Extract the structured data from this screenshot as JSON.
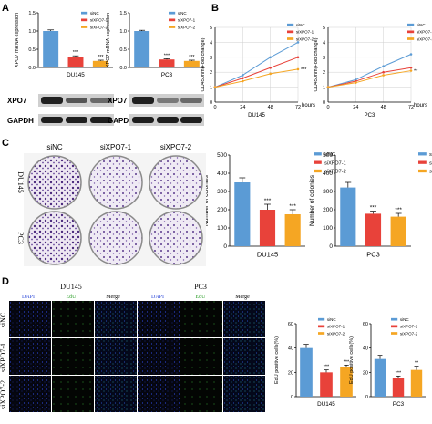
{
  "panels": {
    "A": "A",
    "B": "B",
    "C": "C",
    "D": "D"
  },
  "legend3": [
    "siNC",
    "siXPO7-1",
    "siXPO7-2"
  ],
  "colors": {
    "siNC": "#5b9bd5",
    "siXPO7-1": "#e8423a",
    "siXPO7-2": "#f5a623"
  },
  "cells": {
    "du145": "DU145",
    "pc3": "PC3"
  },
  "blot_labels": {
    "xpo7": "XPO7",
    "gapdh": "GAPDH"
  },
  "stars": {
    "three": "***",
    "two": "**"
  },
  "panelB": {
    "ylabel": "OD450nm(Fold change)",
    "xunit": "hours",
    "pc3_end_mark": "**"
  },
  "panelC": {
    "row_labels": [
      "DU145",
      "PC3"
    ]
  },
  "panelD": {
    "cols": [
      "DAPI",
      "EdU",
      "Merge"
    ],
    "rows": [
      "siNC",
      "siXPO7-1",
      "siXPO7-2"
    ]
  },
  "chart_data": [
    {
      "type": "bar",
      "id": "A-DU145",
      "categories": [
        "siNC",
        "siXPO7-1",
        "siXPO7-2"
      ],
      "values": [
        1.0,
        0.3,
        0.18
      ],
      "errors": [
        0.03,
        0.02,
        0.02
      ],
      "ylim": [
        0,
        1.5
      ],
      "yticks": [
        "0.0",
        "0.5",
        "1.0",
        "1.5"
      ],
      "ylabel": "XPO7 mRNA expression",
      "xlabel": "DU145",
      "stars": [
        "",
        "***",
        "***"
      ]
    },
    {
      "type": "bar",
      "id": "A-PC3",
      "categories": [
        "siNC",
        "siXPO7-1",
        "siXPO7-2"
      ],
      "values": [
        1.0,
        0.22,
        0.18
      ],
      "errors": [
        0.02,
        0.02,
        0.02
      ],
      "ylim": [
        0,
        1.5
      ],
      "yticks": [
        "0.0",
        "0.5",
        "1.0",
        "1.5"
      ],
      "ylabel": "XPO7 mRNA expression",
      "xlabel": "PC3",
      "stars": [
        "",
        "***",
        "***"
      ]
    },
    {
      "type": "line",
      "id": "B-DU145",
      "x": [
        0,
        24,
        48,
        72
      ],
      "xticks": [
        "0",
        "24",
        "48",
        "72"
      ],
      "ylim": [
        0,
        5
      ],
      "yticks": [
        "0",
        "1",
        "2",
        "3",
        "4",
        "5"
      ],
      "xlabel": "DU145",
      "series": [
        {
          "name": "siNC",
          "values": [
            1.0,
            1.8,
            3.0,
            4.0
          ]
        },
        {
          "name": "siXPO7-1",
          "values": [
            1.0,
            1.6,
            2.3,
            3.0
          ]
        },
        {
          "name": "siXPO7-2",
          "values": [
            1.0,
            1.4,
            1.9,
            2.2
          ]
        }
      ]
    },
    {
      "type": "line",
      "id": "B-PC3",
      "x": [
        0,
        24,
        48,
        72
      ],
      "xticks": [
        "0",
        "24",
        "48",
        "72"
      ],
      "ylim": [
        0,
        5
      ],
      "yticks": [
        "0",
        "1",
        "2",
        "3",
        "4",
        "5"
      ],
      "xlabel": "PC3",
      "series": [
        {
          "name": "siNC",
          "values": [
            1.0,
            1.5,
            2.4,
            3.2
          ]
        },
        {
          "name": "siXPO7-1",
          "values": [
            1.0,
            1.4,
            2.0,
            2.3
          ]
        },
        {
          "name": "siXPO7-2",
          "values": [
            1.0,
            1.3,
            1.8,
            2.1
          ]
        }
      ]
    },
    {
      "type": "bar",
      "id": "C-DU145",
      "categories": [
        "siNC",
        "siXPO7-1",
        "siXPO7-2"
      ],
      "values": [
        350,
        200,
        175
      ],
      "errors": [
        25,
        30,
        25
      ],
      "ylim": [
        0,
        500
      ],
      "yticks": [
        "0",
        "100",
        "200",
        "300",
        "400",
        "500"
      ],
      "ylabel": "Number of colonies",
      "xlabel": "DU145",
      "stars": [
        "",
        "***",
        "***"
      ]
    },
    {
      "type": "bar",
      "id": "C-PC3",
      "categories": [
        "siNC",
        "siXPO7-1",
        "siXPO7-2"
      ],
      "values": [
        322,
        178,
        162
      ],
      "errors": [
        28,
        14,
        18
      ],
      "ylim": [
        0,
        500
      ],
      "yticks": [
        "0",
        "100",
        "200",
        "300",
        "400",
        "500"
      ],
      "ylabel": "Number of colonies",
      "xlabel": "PC3",
      "stars": [
        "",
        "***",
        "***"
      ]
    },
    {
      "type": "bar",
      "id": "D-DU145",
      "categories": [
        "siNC",
        "siXPO7-1",
        "siXPO7-2"
      ],
      "values": [
        40,
        20,
        24
      ],
      "errors": [
        3,
        2,
        2
      ],
      "ylim": [
        0,
        60
      ],
      "yticks": [
        "0",
        "20",
        "40",
        "60"
      ],
      "ylabel": "EdU positive cells(%)",
      "xlabel": "DU145",
      "stars": [
        "",
        "***",
        "***"
      ]
    },
    {
      "type": "bar",
      "id": "D-PC3",
      "categories": [
        "siNC",
        "siXPO7-1",
        "siXPO7-2"
      ],
      "values": [
        31,
        15,
        22
      ],
      "errors": [
        3,
        2,
        3
      ],
      "ylim": [
        0,
        60
      ],
      "yticks": [
        "0",
        "20",
        "40",
        "60"
      ],
      "ylabel": "EdU positive cells(%)",
      "xlabel": "PC3",
      "stars": [
        "",
        "***",
        "**"
      ]
    }
  ]
}
